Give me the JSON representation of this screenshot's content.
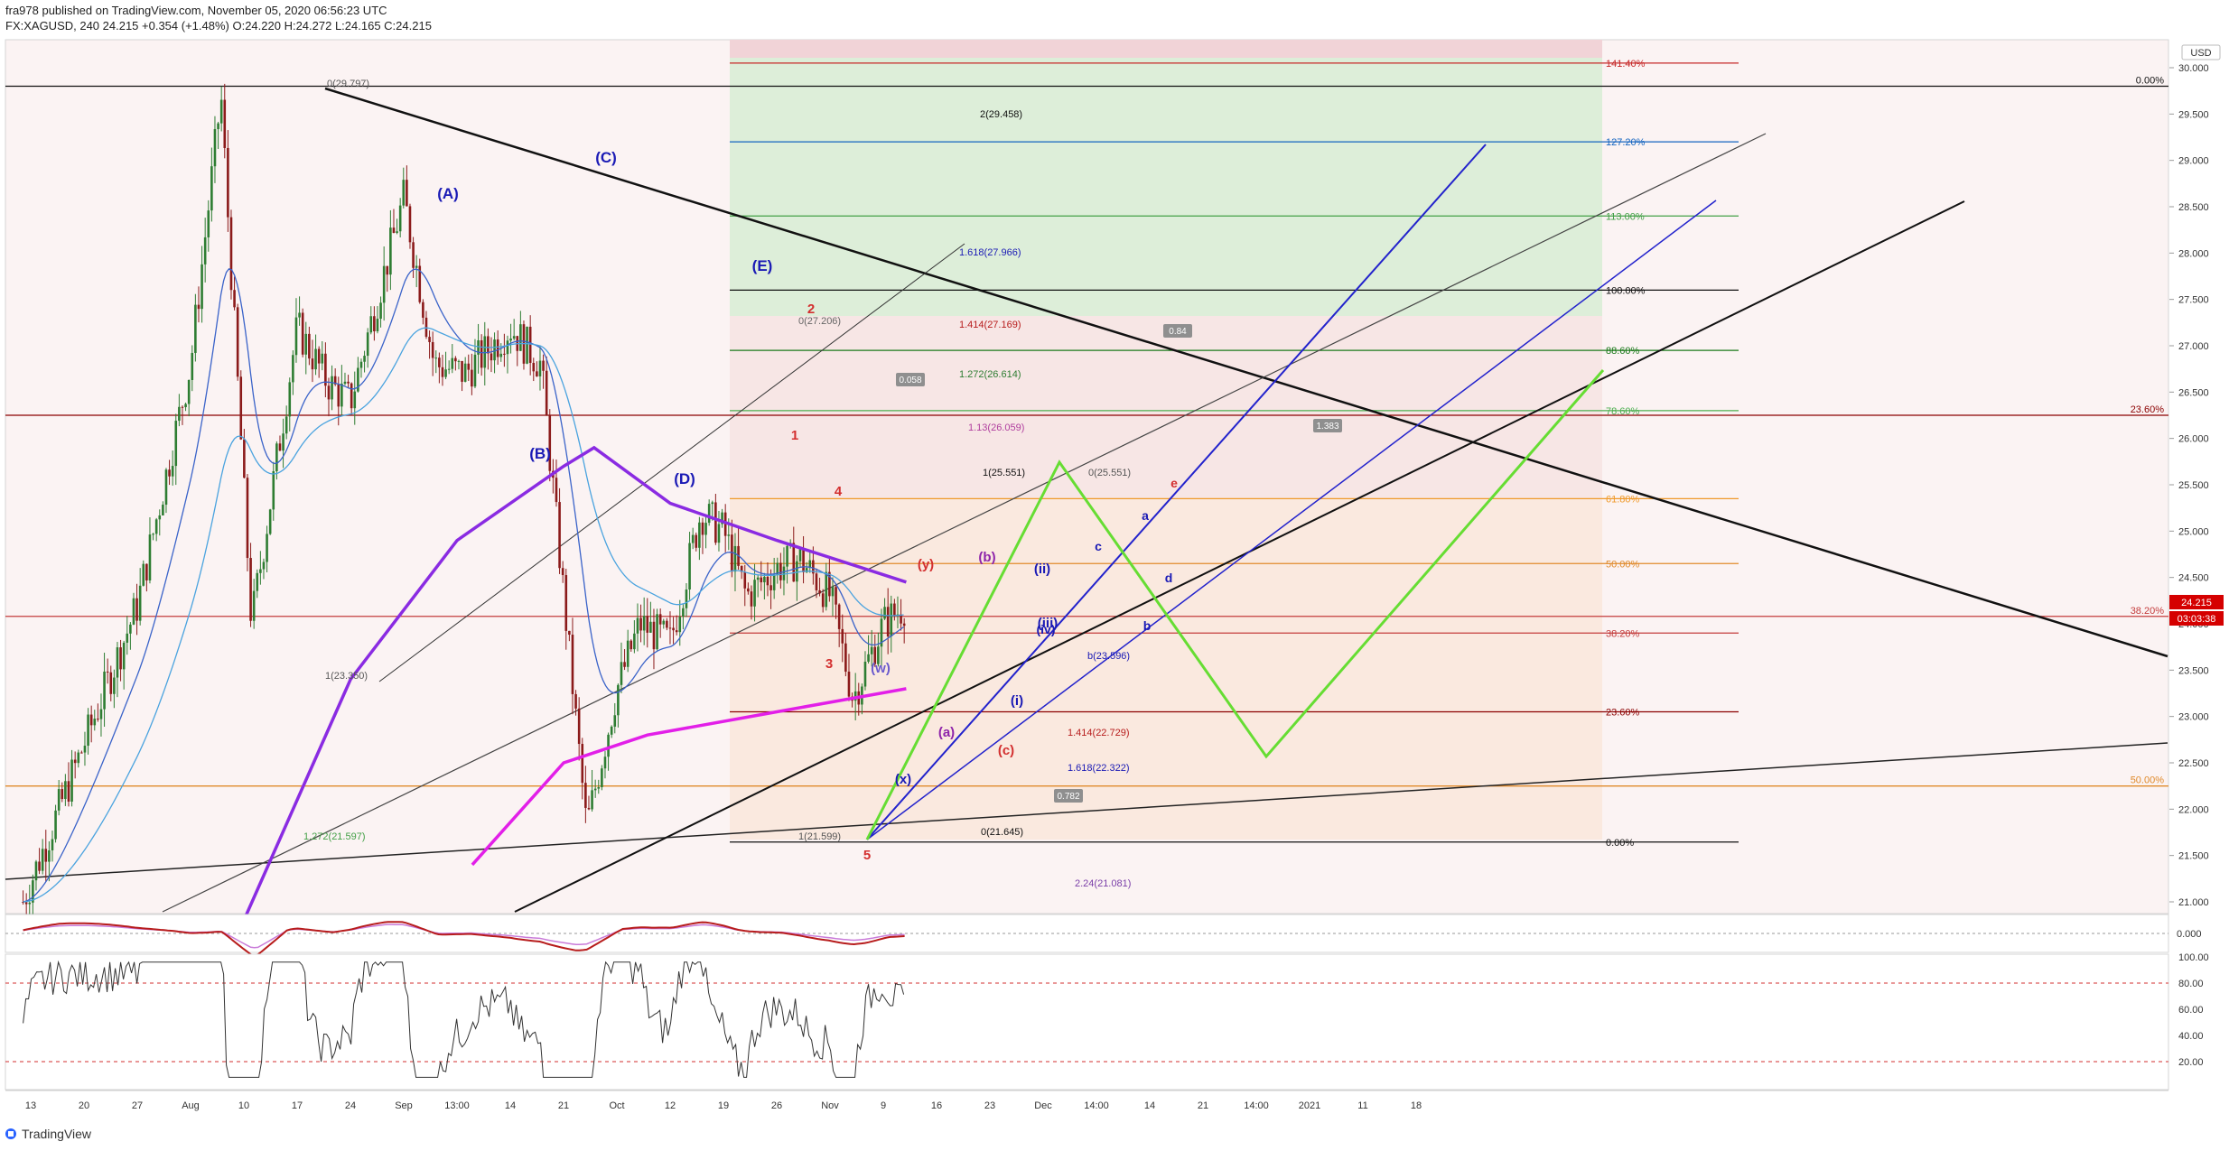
{
  "header": {
    "line1": "fra978 published on TradingView.com, November 05, 2020 06:56:23 UTC",
    "line2": "FX:XAGUSD, 240  24.215  +0.354 (+1.48%)  O:24.220  H:24.272  L:24.165  C:24.215"
  },
  "footer": {
    "brand": "TradingView"
  },
  "colors": {
    "candle_up": "#2e7d32",
    "candle_down": "#8b1a1a",
    "ema_fast": "#3a63c9",
    "ema_mid": "#4aa3df",
    "ma_purple": "#8a2be2",
    "ma_magenta": "#e21fe8",
    "wave_blue": "#1a1ab5",
    "wave_red": "#d32f2f",
    "wave_green": "#66dd33",
    "accent_badge": "#d50000"
  },
  "chart_data": [
    {
      "type": "candlestick",
      "symbol": "FX:XAGUSD",
      "interval": "240",
      "currency_label": "USD",
      "ylim": [
        20.75,
        30.25
      ],
      "y_ticks": [
        "30.000",
        "29.500",
        "29.000",
        "28.500",
        "28.000",
        "27.500",
        "27.000",
        "26.500",
        "26.000",
        "25.500",
        "25.000",
        "24.500",
        "24.000",
        "23.500",
        "23.000",
        "22.500",
        "22.000",
        "21.500",
        "21.000"
      ],
      "x_ticks": [
        "13",
        "20",
        "27",
        "Aug",
        "10",
        "17",
        "24",
        "Sep",
        "13:00",
        "14",
        "21",
        "Oct",
        "12",
        "19",
        "26",
        "Nov",
        "9",
        "16",
        "23",
        "Dec",
        "14:00",
        "14",
        "21",
        "14:00",
        "2021",
        "11",
        "18"
      ],
      "last_price": "24.215",
      "countdown": "03:03:38",
      "close_path": [
        {
          "date": "2020-07-12",
          "close": 21.0
        },
        {
          "date": "2020-07-20",
          "close": 22.7
        },
        {
          "date": "2020-07-27",
          "close": 24.2
        },
        {
          "date": "2020-08-03",
          "close": 26.8
        },
        {
          "date": "2020-08-07",
          "close": 29.7
        },
        {
          "date": "2020-08-11",
          "close": 24.0
        },
        {
          "date": "2020-08-17",
          "close": 27.2
        },
        {
          "date": "2020-08-21",
          "close": 26.6
        },
        {
          "date": "2020-08-24",
          "close": 26.4
        },
        {
          "date": "2020-08-31",
          "close": 28.6
        },
        {
          "date": "2020-09-04",
          "close": 26.8
        },
        {
          "date": "2020-09-08",
          "close": 26.7
        },
        {
          "date": "2020-09-14",
          "close": 27.2
        },
        {
          "date": "2020-09-18",
          "close": 26.8
        },
        {
          "date": "2020-09-21",
          "close": 24.3
        },
        {
          "date": "2020-09-24",
          "close": 21.8
        },
        {
          "date": "2020-09-28",
          "close": 23.3
        },
        {
          "date": "2020-10-01",
          "close": 24.0
        },
        {
          "date": "2020-10-05",
          "close": 23.8
        },
        {
          "date": "2020-10-09",
          "close": 25.2
        },
        {
          "date": "2020-10-12",
          "close": 25.0
        },
        {
          "date": "2020-10-15",
          "close": 24.3
        },
        {
          "date": "2020-10-19",
          "close": 24.6
        },
        {
          "date": "2020-10-22",
          "close": 24.7
        },
        {
          "date": "2020-10-26",
          "close": 24.3
        },
        {
          "date": "2020-10-29",
          "close": 23.2
        },
        {
          "date": "2020-11-02",
          "close": 24.0
        },
        {
          "date": "2020-11-05",
          "close": 24.215
        }
      ],
      "moving_averages": [
        {
          "name": "MA purple",
          "color": "#8a2be2",
          "points": [
            {
              "date": "2020-08-10",
              "v": 20.8
            },
            {
              "date": "2020-08-24",
              "v": 23.4
            },
            {
              "date": "2020-09-07",
              "v": 24.9
            },
            {
              "date": "2020-09-21",
              "v": 25.7
            },
            {
              "date": "2020-09-25",
              "v": 25.9
            },
            {
              "date": "2020-10-05",
              "v": 25.3
            },
            {
              "date": "2020-10-19",
              "v": 24.9
            },
            {
              "date": "2020-11-05",
              "v": 24.45
            }
          ]
        },
        {
          "name": "MA magenta",
          "color": "#e21fe8",
          "points": [
            {
              "date": "2020-09-09",
              "v": 21.4
            },
            {
              "date": "2020-09-21",
              "v": 22.5
            },
            {
              "date": "2020-10-02",
              "v": 22.8
            },
            {
              "date": "2020-10-19",
              "v": 23.05
            },
            {
              "date": "2020-11-05",
              "v": 23.3
            }
          ]
        }
      ],
      "price_levels": [
        {
          "label": "0.00%",
          "value": 29.8,
          "side": "right"
        },
        {
          "label": "23.60%",
          "value": 26.25,
          "side": "right"
        },
        {
          "label": "38.20%",
          "value": 24.08,
          "side": "right"
        },
        {
          "label": "50.00%",
          "value": 22.25,
          "side": "right"
        },
        {
          "label": "0.00%",
          "value": 21.645,
          "side": "mid"
        },
        {
          "label": "23.60%",
          "value": 23.05,
          "side": "mid"
        },
        {
          "label": "38.20%",
          "value": 23.9,
          "side": "mid"
        },
        {
          "label": "50.00%",
          "value": 24.65,
          "side": "mid"
        },
        {
          "label": "61.80%",
          "value": 25.35,
          "side": "mid"
        },
        {
          "label": "78.60%",
          "value": 26.3,
          "side": "mid"
        },
        {
          "label": "88.60%",
          "value": 26.95,
          "side": "mid"
        },
        {
          "label": "100.00%",
          "value": 27.6,
          "side": "mid"
        },
        {
          "label": "113.00%",
          "value": 28.4,
          "side": "mid"
        },
        {
          "label": "127.20%",
          "value": 29.2,
          "side": "mid"
        },
        {
          "label": "141.40%",
          "value": 30.05,
          "side": "mid"
        }
      ],
      "extension_labels": [
        "0(29.797)",
        "1(23.350)",
        "2(29.458)",
        "1.618(27.966)",
        "1.414(27.169)",
        "1.272(26.614)",
        "1.13(26.059)",
        "1(25.551)",
        "0(25.551)",
        "0(27.206)",
        "1(21.599)",
        "0(21.645)",
        "1.272(21.597)",
        "1.414(22.729)",
        "1.618(22.322)",
        "2.24(21.081)",
        "b(23.596)"
      ],
      "box_labels": [
        "0.058",
        "0.84",
        "1.383",
        "0.782"
      ],
      "wave_labels": [
        "(A)",
        "(B)",
        "(C)",
        "(D)",
        "(E)",
        "1",
        "2",
        "3",
        "4",
        "5",
        "(w)",
        "(x)",
        "(y)",
        "(a)",
        "(b)",
        "(c)",
        "(i)",
        "(ii)",
        "(iii)",
        "(iv)",
        "a",
        "b",
        "c",
        "d",
        "e"
      ]
    },
    {
      "type": "line",
      "name": "oscillator",
      "y_tick": "0.000"
    },
    {
      "type": "line",
      "name": "rsi",
      "y_ticks": [
        "100.00",
        "80.00",
        "60.00",
        "40.00",
        "20.00"
      ],
      "levels": [
        80,
        20
      ]
    }
  ]
}
